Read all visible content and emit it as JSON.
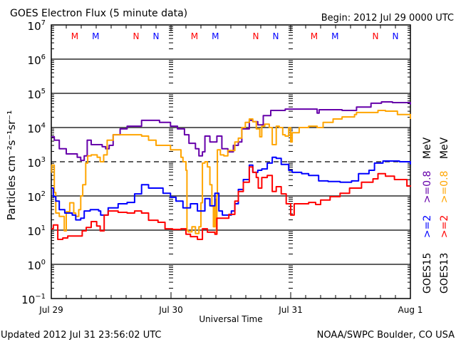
{
  "chart_data": {
    "type": "line",
    "title": "GOES Electron Flux (5 minute data)",
    "begin": "Begin: 2012 Jul 29 0000 UTC",
    "ylabel": "Particles cm⁻²s⁻¹sr⁻¹",
    "xlabel": "Universal Time",
    "x_units": "hours since 2012 Jul 29 00:00 UTC",
    "xlim": [
      0,
      72
    ],
    "yscale": "log",
    "ylim_log10": [
      -1,
      7
    ],
    "y_ticks": [
      {
        "base": "10",
        "exp": "7"
      },
      {
        "base": "10",
        "exp": "6"
      },
      {
        "base": "10",
        "exp": "5"
      },
      {
        "base": "10",
        "exp": "4"
      },
      {
        "base": "10",
        "exp": "3"
      },
      {
        "base": "10",
        "exp": "2"
      },
      {
        "base": "10",
        "exp": "1"
      },
      {
        "base": "10",
        "exp": "0"
      },
      {
        "base": "10",
        "exp": "−1"
      }
    ],
    "x_ticks": [
      {
        "label": "Jul 29",
        "hour": 0
      },
      {
        "label": "Jul 30",
        "hour": 24
      },
      {
        "label": "Jul 31",
        "hour": 48
      },
      {
        "label": "Aug 1",
        "hour": 72
      }
    ],
    "gridlines_log10": [
      6,
      5,
      4,
      2,
      1,
      0
    ],
    "dashed_gridline_log10": 3,
    "markers": [
      {
        "label": "M",
        "color": "#ff0000",
        "hours": [
          4.7,
          28.7,
          52.7
        ]
      },
      {
        "label": "M",
        "color": "#0000ff",
        "hours": [
          8.9,
          32.9,
          56.9
        ]
      },
      {
        "label": "N",
        "color": "#ff0000",
        "hours": [
          17.0,
          41.0,
          65.0
        ]
      },
      {
        "label": "N",
        "color": "#0000ff",
        "hours": [
          21.0,
          45.0,
          69.0
        ]
      }
    ],
    "legend": {
      "placement": "right",
      "columns": [
        {
          "satellite": "GOES15",
          "items": [
            {
              "text": ">=2",
              "color": "#0000ff"
            },
            {
              "text": ">=0.8",
              "color": "#6600aa"
            }
          ],
          "units": "MeV"
        },
        {
          "satellite": "GOES13",
          "items": [
            {
              "text": ">=2",
              "color": "#ff0000"
            },
            {
              "text": ">=0.8",
              "color": "#ffa500"
            }
          ],
          "units": "MeV"
        }
      ]
    },
    "series": [
      {
        "name": "GOES15 >=0.8 MeV",
        "color": "#6600aa",
        "points_hour_log10": [
          [
            0,
            3.73
          ],
          [
            0.6,
            3.63
          ],
          [
            1.6,
            3.38
          ],
          [
            3.0,
            3.23
          ],
          [
            5.2,
            3.13
          ],
          [
            5.9,
            3.04
          ],
          [
            6.6,
            3.17
          ],
          [
            7.2,
            3.63
          ],
          [
            8.0,
            3.5
          ],
          [
            10.2,
            3.44
          ],
          [
            10.9,
            3.38
          ],
          [
            11.6,
            3.48
          ],
          [
            12.4,
            3.79
          ],
          [
            13.8,
            3.96
          ],
          [
            15.2,
            4.04
          ],
          [
            18.1,
            4.21
          ],
          [
            19.5,
            4.21
          ],
          [
            21.7,
            4.15
          ],
          [
            23.9,
            4.04
          ],
          [
            25.3,
            3.96
          ],
          [
            26.7,
            3.79
          ],
          [
            27.6,
            3.54
          ],
          [
            28.9,
            3.38
          ],
          [
            29.6,
            3.17
          ],
          [
            30.3,
            3.29
          ],
          [
            30.8,
            3.75
          ],
          [
            31.8,
            3.58
          ],
          [
            33.2,
            3.75
          ],
          [
            34.2,
            3.38
          ],
          [
            35.4,
            3.29
          ],
          [
            36.5,
            3.48
          ],
          [
            37.5,
            3.58
          ],
          [
            38.2,
            3.96
          ],
          [
            39.7,
            4.21
          ],
          [
            40.4,
            4.17
          ],
          [
            41.4,
            4.08
          ],
          [
            42.5,
            4.35
          ],
          [
            44.0,
            4.5
          ],
          [
            46.9,
            4.54
          ],
          [
            49.7,
            4.54
          ],
          [
            52.6,
            4.54
          ],
          [
            53.3,
            4.42
          ],
          [
            53.7,
            4.52
          ],
          [
            58.3,
            4.5
          ],
          [
            61.2,
            4.6
          ],
          [
            64.1,
            4.71
          ],
          [
            66.2,
            4.75
          ],
          [
            68.4,
            4.73
          ],
          [
            72,
            4.67
          ]
        ]
      },
      {
        "name": "GOES13 >=0.8 MeV",
        "color": "#ffa500",
        "points_hour_log10": [
          [
            0,
            2.69
          ],
          [
            0.1,
            2.9
          ],
          [
            0.6,
            2.1
          ],
          [
            0.9,
            1.5
          ],
          [
            1.6,
            1.4
          ],
          [
            2.6,
            0.98
          ],
          [
            3.0,
            1.54
          ],
          [
            3.7,
            1.8
          ],
          [
            4.5,
            1.5
          ],
          [
            4.9,
            1.4
          ],
          [
            5.5,
            1.6
          ],
          [
            5.9,
            2.0
          ],
          [
            6.3,
            2.33
          ],
          [
            6.9,
            2.96
          ],
          [
            7.3,
            3.17
          ],
          [
            8.0,
            3.2
          ],
          [
            9.2,
            3.13
          ],
          [
            9.8,
            3.0
          ],
          [
            10.5,
            3.2
          ],
          [
            11.2,
            3.63
          ],
          [
            12.4,
            3.79
          ],
          [
            16.0,
            3.79
          ],
          [
            18.1,
            3.75
          ],
          [
            19.5,
            3.63
          ],
          [
            21.0,
            3.48
          ],
          [
            23.9,
            3.35
          ],
          [
            26.0,
            3.13
          ],
          [
            26.4,
            3.0
          ],
          [
            27.0,
            2.75
          ],
          [
            27.2,
            1.0
          ],
          [
            27.4,
            0.95
          ],
          [
            28.2,
            1.1
          ],
          [
            28.9,
            0.9
          ],
          [
            29.6,
            1.1
          ],
          [
            30.0,
            1.8
          ],
          [
            30.3,
            2.96
          ],
          [
            30.8,
            3.0
          ],
          [
            31.3,
            2.85
          ],
          [
            31.8,
            2.33
          ],
          [
            32.2,
            1.7
          ],
          [
            32.5,
            1.1
          ],
          [
            32.8,
            1.9
          ],
          [
            33.1,
            0.9
          ],
          [
            33.2,
            2.0
          ],
          [
            33.3,
            3.35
          ],
          [
            33.9,
            3.2
          ],
          [
            34.6,
            3.17
          ],
          [
            35.4,
            3.33
          ],
          [
            36.8,
            3.58
          ],
          [
            37.5,
            3.69
          ],
          [
            38.2,
            4.0
          ],
          [
            38.9,
            4.15
          ],
          [
            39.7,
            4.25
          ],
          [
            40.4,
            4.17
          ],
          [
            41.1,
            3.96
          ],
          [
            41.8,
            3.73
          ],
          [
            42.2,
            4.04
          ],
          [
            42.8,
            4.1
          ],
          [
            43.7,
            4.0
          ],
          [
            44.3,
            3.5
          ],
          [
            45.1,
            4.04
          ],
          [
            45.7,
            4.0
          ],
          [
            46.4,
            3.79
          ],
          [
            46.9,
            3.75
          ],
          [
            47.6,
            4.0
          ],
          [
            48.0,
            3.58
          ],
          [
            48.3,
            3.85
          ],
          [
            49.7,
            4.0
          ],
          [
            51.6,
            4.04
          ],
          [
            53.3,
            4.0
          ],
          [
            54.5,
            4.15
          ],
          [
            56.5,
            4.25
          ],
          [
            58.3,
            4.31
          ],
          [
            60.8,
            4.38
          ],
          [
            61.2,
            4.44
          ],
          [
            63.1,
            4.44
          ],
          [
            65.5,
            4.5
          ],
          [
            67.0,
            4.48
          ],
          [
            69.4,
            4.38
          ],
          [
            72,
            4.25
          ]
        ]
      },
      {
        "name": "GOES15 >=2 MeV",
        "color": "#0000ff",
        "points_hour_log10": [
          [
            0,
            2.23
          ],
          [
            0.4,
            1.98
          ],
          [
            0.9,
            1.85
          ],
          [
            1.6,
            1.6
          ],
          [
            2.7,
            1.5
          ],
          [
            4.2,
            1.44
          ],
          [
            4.9,
            1.3
          ],
          [
            5.9,
            1.35
          ],
          [
            6.6,
            1.56
          ],
          [
            7.8,
            1.6
          ],
          [
            9.5,
            1.56
          ],
          [
            9.9,
            1.44
          ],
          [
            11.4,
            1.65
          ],
          [
            13.4,
            1.77
          ],
          [
            15.2,
            1.81
          ],
          [
            16.7,
            2.06
          ],
          [
            18.1,
            2.33
          ],
          [
            19.5,
            2.23
          ],
          [
            20.5,
            2.23
          ],
          [
            22.4,
            2.08
          ],
          [
            23.9,
            1.96
          ],
          [
            25.0,
            1.85
          ],
          [
            26.4,
            1.65
          ],
          [
            27.9,
            1.77
          ],
          [
            29.3,
            1.56
          ],
          [
            30.8,
            1.92
          ],
          [
            31.8,
            1.71
          ],
          [
            32.8,
            2.08
          ],
          [
            33.6,
            1.56
          ],
          [
            34.3,
            1.44
          ],
          [
            36.1,
            1.56
          ],
          [
            36.8,
            1.77
          ],
          [
            37.5,
            2.19
          ],
          [
            38.5,
            2.48
          ],
          [
            39.7,
            2.9
          ],
          [
            40.4,
            2.69
          ],
          [
            41.4,
            2.75
          ],
          [
            42.2,
            2.79
          ],
          [
            43.3,
            2.96
          ],
          [
            44.3,
            3.13
          ],
          [
            45.1,
            3.1
          ],
          [
            46.1,
            2.92
          ],
          [
            47.6,
            2.75
          ],
          [
            48.3,
            2.69
          ],
          [
            50.2,
            2.65
          ],
          [
            51.6,
            2.6
          ],
          [
            53.6,
            2.44
          ],
          [
            55.5,
            2.42
          ],
          [
            57.9,
            2.4
          ],
          [
            60.2,
            2.44
          ],
          [
            61.6,
            2.65
          ],
          [
            63.7,
            2.75
          ],
          [
            64.8,
            2.96
          ],
          [
            66.5,
            3.02
          ],
          [
            69.8,
            3.0
          ],
          [
            72,
            2.92
          ]
        ]
      },
      {
        "name": "GOES13 >=2 MeV",
        "color": "#ff0000",
        "points_hour_log10": [
          [
            0,
            1.04
          ],
          [
            0.4,
            1.15
          ],
          [
            1.3,
            0.73
          ],
          [
            2.3,
            0.77
          ],
          [
            3.3,
            0.83
          ],
          [
            4.7,
            0.83
          ],
          [
            6.2,
            0.98
          ],
          [
            7.0,
            1.08
          ],
          [
            8.0,
            1.25
          ],
          [
            9.1,
            1.12
          ],
          [
            9.8,
            0.98
          ],
          [
            10.6,
            1.44
          ],
          [
            11.4,
            1.56
          ],
          [
            13.4,
            1.52
          ],
          [
            15.2,
            1.5
          ],
          [
            16.7,
            1.56
          ],
          [
            18.1,
            1.5
          ],
          [
            19.5,
            1.29
          ],
          [
            21.4,
            1.23
          ],
          [
            22.8,
            1.04
          ],
          [
            24.3,
            1.02
          ],
          [
            26.0,
            1.04
          ],
          [
            27.0,
            0.88
          ],
          [
            27.9,
            0.81
          ],
          [
            29.3,
            0.73
          ],
          [
            30.3,
            1.04
          ],
          [
            31.3,
            0.94
          ],
          [
            32.8,
            0.88
          ],
          [
            33.2,
            1.35
          ],
          [
            34.6,
            1.35
          ],
          [
            35.6,
            1.46
          ],
          [
            36.8,
            1.85
          ],
          [
            37.5,
            2.13
          ],
          [
            38.5,
            2.4
          ],
          [
            39.7,
            2.85
          ],
          [
            40.4,
            2.69
          ],
          [
            41.1,
            2.54
          ],
          [
            41.5,
            2.23
          ],
          [
            42.2,
            2.54
          ],
          [
            43.3,
            2.6
          ],
          [
            44.3,
            2.13
          ],
          [
            45.1,
            2.27
          ],
          [
            46.1,
            2.06
          ],
          [
            47.1,
            1.77
          ],
          [
            48.0,
            1.44
          ],
          [
            48.7,
            1.77
          ],
          [
            51.6,
            1.81
          ],
          [
            53.0,
            1.75
          ],
          [
            54.0,
            1.88
          ],
          [
            55.9,
            1.98
          ],
          [
            57.9,
            2.08
          ],
          [
            59.8,
            2.23
          ],
          [
            62.2,
            2.4
          ],
          [
            64.5,
            2.5
          ],
          [
            65.5,
            2.65
          ],
          [
            67.0,
            2.58
          ],
          [
            68.8,
            2.48
          ],
          [
            71.3,
            2.29
          ],
          [
            72,
            2.27
          ]
        ]
      }
    ]
  },
  "footer": {
    "updated": "Updated 2012 Jul 31 23:56:02 UTC",
    "source": "NOAA/SWPC Boulder, CO USA"
  }
}
